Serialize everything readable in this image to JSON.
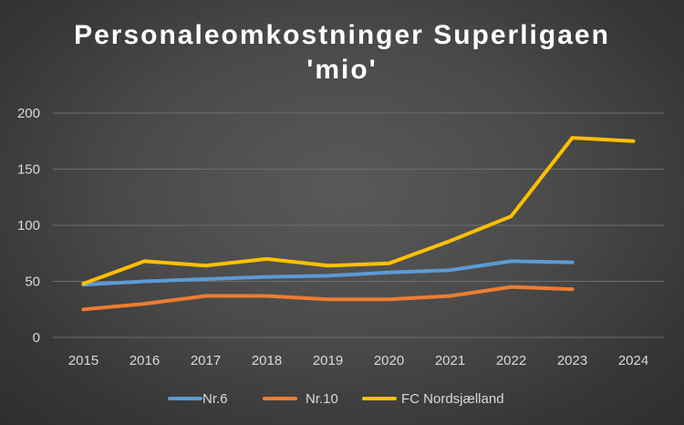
{
  "chart_data": {
    "type": "line",
    "title": "Personaleomkostninger Superligaen",
    "subtitle": "'mio'",
    "xlabel": "",
    "ylabel": "",
    "categories": [
      "2015",
      "2016",
      "2017",
      "2018",
      "2019",
      "2020",
      "2021",
      "2022",
      "2023",
      "2024"
    ],
    "ylim": [
      0,
      200
    ],
    "yticks": [
      0,
      50,
      100,
      150,
      200
    ],
    "grid": true,
    "legend": "bottom",
    "series": [
      {
        "name": "Nr.6",
        "color": "#5b9bd5",
        "values": [
          47,
          50,
          52,
          54,
          55,
          58,
          60,
          68,
          67,
          null
        ]
      },
      {
        "name": "Nr.10",
        "color": "#ed7d31",
        "values": [
          25,
          30,
          37,
          37,
          34,
          34,
          37,
          45,
          43,
          null
        ]
      },
      {
        "name": "FC Nordsjælland",
        "color": "#ffc000",
        "values": [
          48,
          68,
          64,
          70,
          64,
          66,
          86,
          108,
          178,
          175
        ]
      }
    ]
  }
}
